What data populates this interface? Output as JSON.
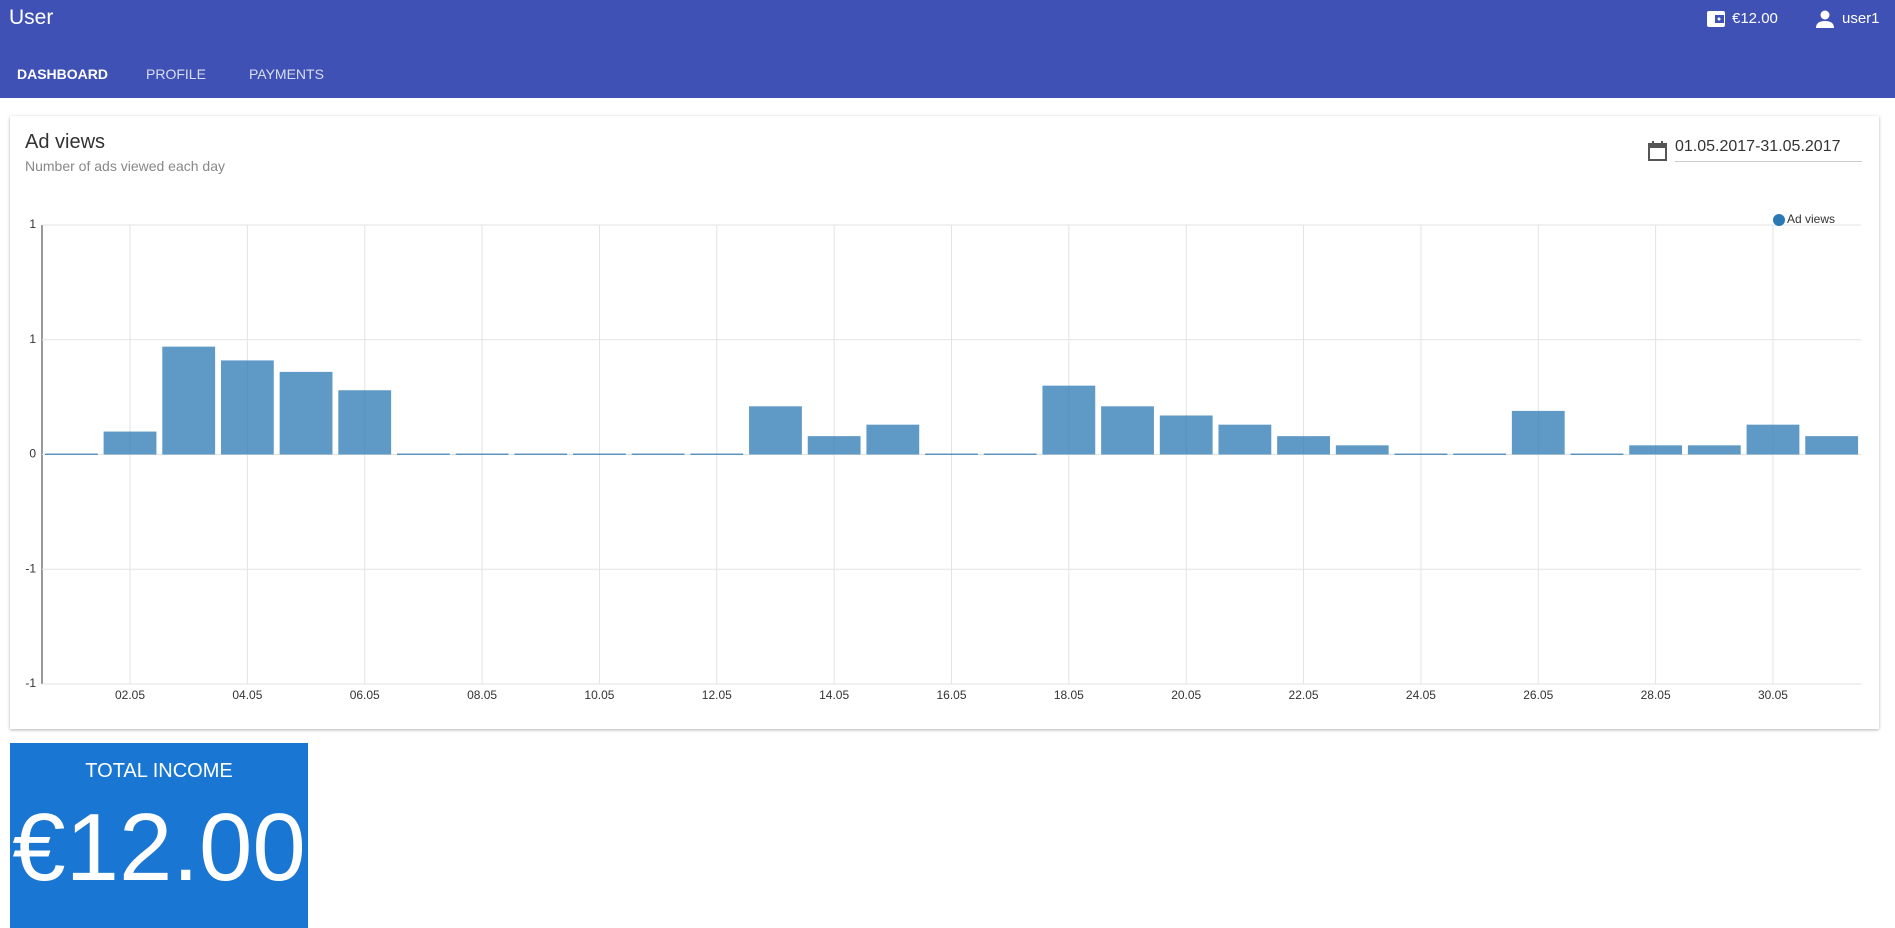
{
  "header": {
    "title": "User",
    "balance": "€12.00",
    "user": "user1"
  },
  "tabs": [
    "DASHBOARD",
    "PROFILE",
    "PAYMENTS"
  ],
  "card": {
    "title": "Ad views",
    "subtitle": "Number of ads viewed each day",
    "date_range": "01.05.2017-31.05.2017"
  },
  "chart_data": {
    "type": "bar",
    "categories": [
      null,
      "02.05",
      null,
      "04.05",
      null,
      "06.05",
      null,
      "08.05",
      null,
      "10.05",
      null,
      "12.05",
      null,
      "14.05",
      null,
      "16.05",
      null,
      "18.05",
      null,
      "20.05",
      null,
      "22.05",
      null,
      "24.05",
      null,
      "26.05",
      null,
      "28.05",
      null,
      "30.05",
      null
    ],
    "series": [
      {
        "name": "Ad views",
        "color": "#2a78b4",
        "values": [
          0,
          0.1,
          0.47,
          0.41,
          0.36,
          0.28,
          0,
          0,
          0,
          0,
          0,
          0,
          0.21,
          0.08,
          0.13,
          0,
          0,
          0.3,
          0.21,
          0.17,
          0.13,
          0.08,
          0.04,
          0,
          0,
          0.19,
          0,
          0.04,
          0.04,
          0.13,
          0.08
        ]
      }
    ],
    "ylim": [
      -1,
      1
    ],
    "yticks": [
      -1,
      {
        "value": -0.5,
        "label": "-1"
      },
      0,
      {
        "value": 0.5,
        "label": "1"
      },
      1
    ],
    "grid": true,
    "legend": "top-right"
  },
  "income": {
    "label": "TOTAL INCOME",
    "value": "€12.00"
  }
}
